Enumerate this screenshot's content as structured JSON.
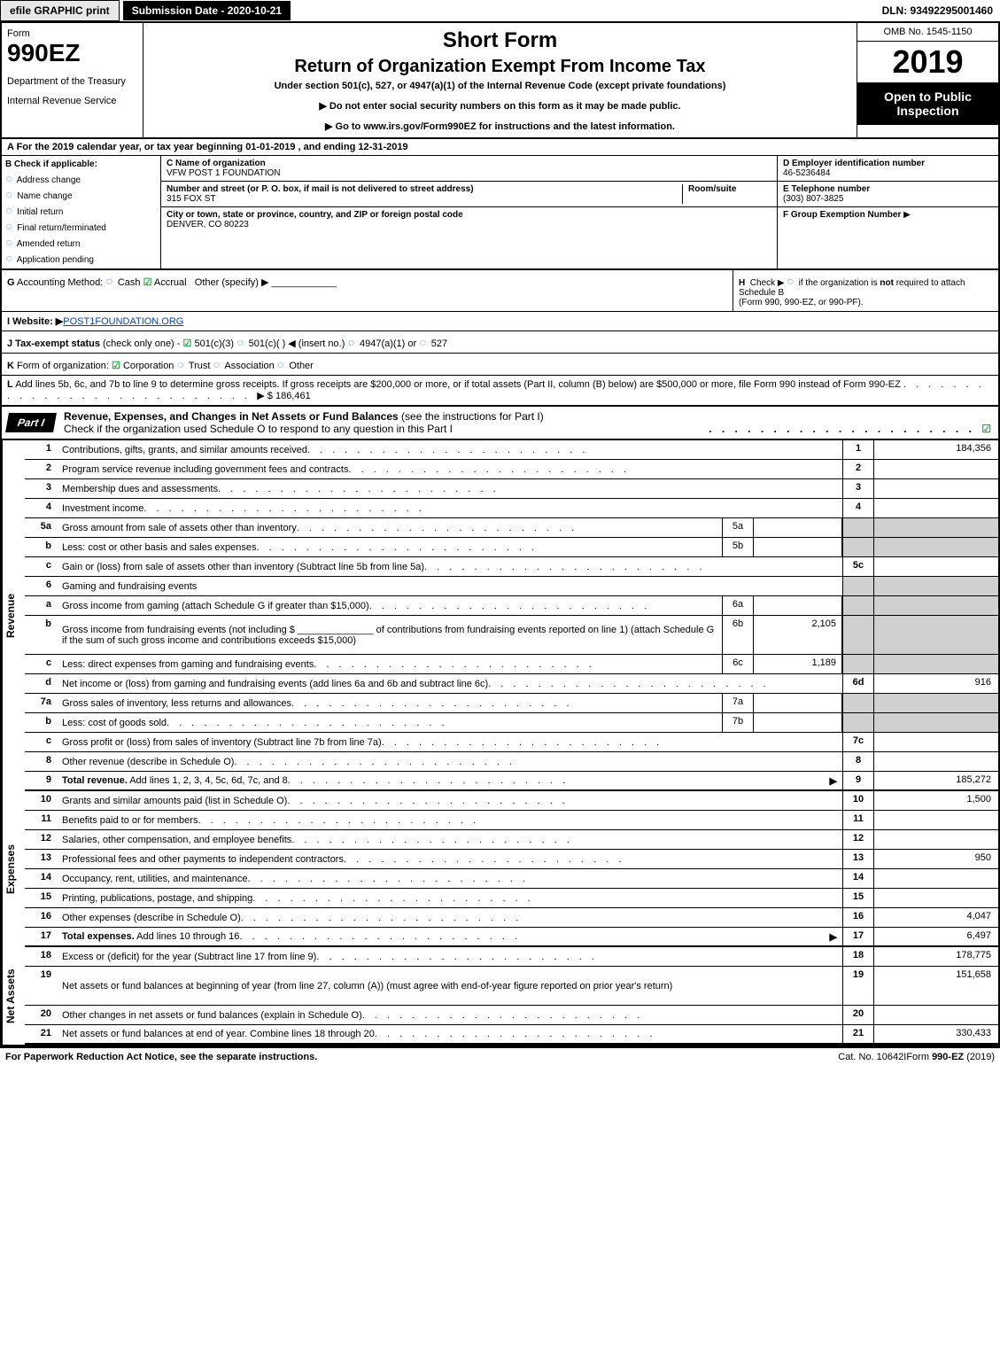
{
  "top": {
    "efile": "efile GRAPHIC print",
    "submission": "Submission Date - 2020-10-21",
    "dln": "DLN: 93492295001460"
  },
  "header": {
    "form_label": "Form",
    "form_num": "990EZ",
    "dept1": "Department of the Treasury",
    "dept2": "Internal Revenue Service",
    "title1": "Short Form",
    "title2": "Return of Organization Exempt From Income Tax",
    "subtitle": "Under section 501(c), 527, or 4947(a)(1) of the Internal Revenue Code (except private foundations)",
    "note1": "▶ Do not enter social security numbers on this form as it may be made public.",
    "note2_pre": "▶ Go to ",
    "note2_link": "www.irs.gov/Form990EZ",
    "note2_post": " for instructions and the latest information.",
    "omb": "OMB No. 1545-1150",
    "year": "2019",
    "open": "Open to Public Inspection"
  },
  "tax_year": "A For the 2019 calendar year, or tax year beginning 01-01-2019 , and ending 12-31-2019",
  "entity": {
    "B_label": "B",
    "check_applicable": "Check if applicable:",
    "checks": [
      "Address change",
      "Name change",
      "Initial return",
      "Final return/terminated",
      "Amended return",
      "Application pending"
    ],
    "C_label": "C",
    "C_name_label": "Name of organization",
    "C_name": "VFW POST 1 FOUNDATION",
    "C_street_label": "Number and street (or P. O. box, if mail is not delivered to street address)",
    "C_room_label": "Room/suite",
    "C_street": "315 FOX ST",
    "C_city_label": "City or town, state or province, country, and ZIP or foreign postal code",
    "C_city": "DENVER, CO  80223",
    "D_label": "D Employer identification number",
    "D_val": "46-5236484",
    "E_label": "E Telephone number",
    "E_val": "(303) 807-3825",
    "F_label": "F Group Exemption Number",
    "F_arrow": "▶"
  },
  "lines": {
    "G_label": "G",
    "G_text": "Accounting Method:",
    "G_cash": "Cash",
    "G_accrual": "Accrual",
    "G_other": "Other (specify) ▶",
    "H_label": "H",
    "H_text": "Check ▶",
    "H_text2": "if the organization is",
    "H_not": "not",
    "H_text3": "required to attach Schedule B",
    "H_text4": "(Form 990, 990-EZ, or 990-PF).",
    "I_label": "I Website: ▶",
    "I_val": "POST1FOUNDATION.ORG",
    "J_label": "J Tax-exempt status",
    "J_text": "(check only one) -",
    "J_501c3": "501(c)(3)",
    "J_501c": "501(c)(   ) ◀ (insert no.)",
    "J_4947": "4947(a)(1) or",
    "J_527": "527",
    "K_label": "K",
    "K_text": "Form of organization:",
    "K_corp": "Corporation",
    "K_trust": "Trust",
    "K_assoc": "Association",
    "K_other": "Other",
    "L_label": "L",
    "L_text": "Add lines 5b, 6c, and 7b to line 9 to determine gross receipts. If gross receipts are $200,000 or more, or if total assets (Part II, column (B) below) are $500,000 or more, file Form 990 instead of Form 990-EZ",
    "L_arrow": "▶ $",
    "L_val": "186,461"
  },
  "part1": {
    "badge": "Part I",
    "title": "Revenue, Expenses, and Changes in Net Assets or Fund Balances",
    "title2": "(see the instructions for Part I)",
    "check_text": "Check if the organization used Schedule O to respond to any question in this Part I"
  },
  "vtabs": {
    "revenue": "Revenue",
    "expenses": "Expenses",
    "netassets": "Net Assets"
  },
  "rows": [
    {
      "n": "1",
      "d": "Contributions, gifts, grants, and similar amounts received",
      "ln": "1",
      "v": "184,356"
    },
    {
      "n": "2",
      "d": "Program service revenue including government fees and contracts",
      "ln": "2",
      "v": ""
    },
    {
      "n": "3",
      "d": "Membership dues and assessments",
      "ln": "3",
      "v": ""
    },
    {
      "n": "4",
      "d": "Investment income",
      "ln": "4",
      "v": ""
    },
    {
      "n": "5a",
      "d": "Gross amount from sale of assets other than inventory",
      "sn": "5a",
      "sv": "",
      "shaded": true
    },
    {
      "n": "b",
      "d": "Less: cost or other basis and sales expenses",
      "sn": "5b",
      "sv": "",
      "shaded": true
    },
    {
      "n": "c",
      "d": "Gain or (loss) from sale of assets other than inventory (Subtract line 5b from line 5a)",
      "ln": "5c",
      "v": ""
    },
    {
      "n": "6",
      "d": "Gaming and fundraising events",
      "shaded": true,
      "noval": true
    },
    {
      "n": "a",
      "d": "Gross income from gaming (attach Schedule G if greater than $15,000)",
      "sn": "6a",
      "sv": "",
      "shaded": true
    },
    {
      "n": "b",
      "d": "Gross income from fundraising events (not including $ ______________ of contributions from fundraising events reported on line 1) (attach Schedule G if the sum of such gross income and contributions exceeds $15,000)",
      "sn": "6b",
      "sv": "2,105",
      "shaded": true,
      "tall": true
    },
    {
      "n": "c",
      "d": "Less: direct expenses from gaming and fundraising events",
      "sn": "6c",
      "sv": "1,189",
      "shaded": true
    },
    {
      "n": "d",
      "d": "Net income or (loss) from gaming and fundraising events (add lines 6a and 6b and subtract line 6c)",
      "ln": "6d",
      "v": "916"
    },
    {
      "n": "7a",
      "d": "Gross sales of inventory, less returns and allowances",
      "sn": "7a",
      "sv": "",
      "shaded": true
    },
    {
      "n": "b",
      "d": "Less: cost of goods sold",
      "sn": "7b",
      "sv": "",
      "shaded": true
    },
    {
      "n": "c",
      "d": "Gross profit or (loss) from sales of inventory (Subtract line 7b from line 7a)",
      "ln": "7c",
      "v": ""
    },
    {
      "n": "8",
      "d": "Other revenue (describe in Schedule O)",
      "ln": "8",
      "v": ""
    },
    {
      "n": "9",
      "d": "Total revenue. Add lines 1, 2, 3, 4, 5c, 6d, 7c, and 8",
      "ln": "9",
      "v": "185,272",
      "bold": true,
      "arrow": true,
      "thick": true
    }
  ],
  "rows_exp": [
    {
      "n": "10",
      "d": "Grants and similar amounts paid (list in Schedule O)",
      "ln": "10",
      "v": "1,500"
    },
    {
      "n": "11",
      "d": "Benefits paid to or for members",
      "ln": "11",
      "v": ""
    },
    {
      "n": "12",
      "d": "Salaries, other compensation, and employee benefits",
      "ln": "12",
      "v": ""
    },
    {
      "n": "13",
      "d": "Professional fees and other payments to independent contractors",
      "ln": "13",
      "v": "950"
    },
    {
      "n": "14",
      "d": "Occupancy, rent, utilities, and maintenance",
      "ln": "14",
      "v": ""
    },
    {
      "n": "15",
      "d": "Printing, publications, postage, and shipping",
      "ln": "15",
      "v": ""
    },
    {
      "n": "16",
      "d": "Other expenses (describe in Schedule O)",
      "ln": "16",
      "v": "4,047"
    },
    {
      "n": "17",
      "d": "Total expenses. Add lines 10 through 16",
      "ln": "17",
      "v": "6,497",
      "bold": true,
      "arrow": true,
      "thick": true
    }
  ],
  "rows_na": [
    {
      "n": "18",
      "d": "Excess or (deficit) for the year (Subtract line 17 from line 9)",
      "ln": "18",
      "v": "178,775"
    },
    {
      "n": "19",
      "d": "Net assets or fund balances at beginning of year (from line 27, column (A)) (must agree with end-of-year figure reported on prior year's return)",
      "ln": "19",
      "v": "151,658",
      "tall": true
    },
    {
      "n": "20",
      "d": "Other changes in net assets or fund balances (explain in Schedule O)",
      "ln": "20",
      "v": ""
    },
    {
      "n": "21",
      "d": "Net assets or fund balances at end of year. Combine lines 18 through 20",
      "ln": "21",
      "v": "330,433",
      "thick": true
    }
  ],
  "footer": {
    "left": "For Paperwork Reduction Act Notice, see the separate instructions.",
    "mid": "Cat. No. 10642I",
    "right_pre": "Form ",
    "right_bold": "990-EZ",
    "right_post": " (2019)"
  },
  "colors": {
    "black": "#000000",
    "bullet": "#7cb9e8",
    "check": "#28a745",
    "shade": "#d0d0d0"
  }
}
